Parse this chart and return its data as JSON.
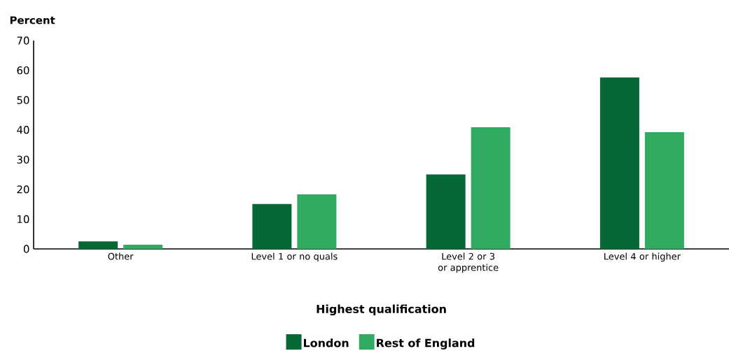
{
  "chart_data": {
    "type": "bar",
    "xlabel": "Highest qualification",
    "ylabel": "Percent",
    "categories": [
      "Other",
      "Level 1 or no quals",
      "Level 2 or 3 or apprentice",
      "Level 4 or higher"
    ],
    "series": [
      {
        "name": "London",
        "color": "#056835",
        "values": [
          2.5,
          15.1,
          25.0,
          57.6
        ]
      },
      {
        "name": "Rest of England",
        "color": "#31ab61",
        "values": [
          1.4,
          18.3,
          40.9,
          39.2
        ]
      }
    ],
    "ylim": [
      0,
      70
    ],
    "yticks": [
      0,
      10,
      20,
      30,
      40,
      50,
      60,
      70
    ],
    "legend": "bottom"
  }
}
